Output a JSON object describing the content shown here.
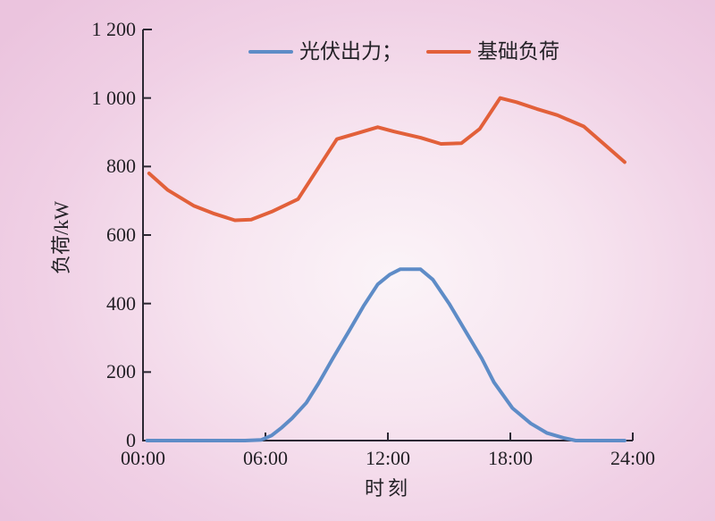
{
  "page": {
    "background_edge_color": "#ebc4de",
    "background_center_color": "#fbf4f8",
    "text_color": "#232126"
  },
  "chart_data": {
    "type": "line",
    "title": "",
    "xlabel": "时刻",
    "ylabel": "负荷/kW",
    "xlim": [
      0,
      24
    ],
    "ylim": [
      0,
      1200
    ],
    "grid": false,
    "legend_position": "top-center",
    "axis_color": "#2c2833",
    "x_ticks": {
      "positions": [
        0,
        6,
        12,
        18,
        24
      ],
      "labels": [
        "00:00",
        "06:00",
        "12:00",
        "18:00",
        "24:00"
      ]
    },
    "y_ticks": {
      "positions": [
        0,
        200,
        400,
        600,
        800,
        1000,
        1200
      ],
      "labels": [
        "0",
        "200",
        "400",
        "600",
        "800",
        "1 000",
        "1 200"
      ]
    },
    "legend": [
      {
        "label": "光伏出力；",
        "color": "#5e8cc7"
      },
      {
        "label": "基础负荷",
        "color": "#e2603a"
      }
    ],
    "series": [
      {
        "id": "pv-output",
        "name": "光伏出力",
        "color": "#5e8cc7",
        "x": [
          0.2,
          1,
          2,
          3,
          4,
          5,
          5.8,
          6.3,
          6.8,
          7.3,
          8.0,
          8.6,
          9.3,
          10.1,
          10.8,
          11.5,
          12.1,
          12.6,
          13.6,
          14.2,
          15.0,
          15.9,
          16.6,
          17.2,
          18.1,
          19.0,
          19.8,
          20.6,
          21.2,
          22.0,
          23.0,
          23.6
        ],
        "y": [
          0,
          0,
          0,
          0,
          0,
          0,
          2,
          15,
          38,
          65,
          110,
          167,
          240,
          320,
          392,
          456,
          485,
          500,
          500,
          470,
          400,
          310,
          240,
          170,
          95,
          50,
          22,
          8,
          0,
          0,
          0,
          0
        ]
      },
      {
        "id": "base-load",
        "name": "基础负荷",
        "color": "#e2603a",
        "x": [
          0.3,
          1.2,
          2.5,
          3.5,
          4.5,
          5.3,
          6.3,
          7.6,
          9.5,
          10.5,
          11.5,
          12.3,
          13.6,
          14.6,
          15.6,
          16.5,
          17.5,
          18.3,
          19.3,
          20.3,
          21.6,
          22.6,
          23.6
        ],
        "y": [
          780,
          732,
          685,
          662,
          643,
          645,
          668,
          705,
          880,
          897,
          915,
          902,
          884,
          866,
          868,
          910,
          1000,
          988,
          968,
          950,
          917,
          865,
          813
        ]
      }
    ]
  }
}
